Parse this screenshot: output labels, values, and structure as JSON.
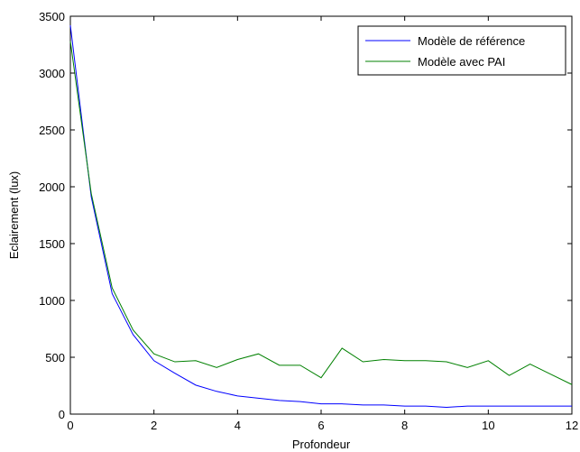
{
  "chart_data": {
    "type": "line",
    "xlabel": "Profondeur",
    "ylabel": "Eclairement (lux)",
    "xlim": [
      0,
      12
    ],
    "ylim": [
      0,
      3500
    ],
    "xticks": [
      0,
      2,
      4,
      6,
      8,
      10,
      12
    ],
    "yticks": [
      0,
      500,
      1000,
      1500,
      2000,
      2500,
      3000,
      3500
    ],
    "grid": false,
    "legend_position": "top-right",
    "series": [
      {
        "name": "Modèle de référence",
        "color": "#0000ff",
        "x": [
          0,
          0.5,
          1,
          1.5,
          2,
          2.5,
          3,
          3.5,
          4,
          4.5,
          5,
          5.5,
          6,
          6.5,
          7,
          7.5,
          8,
          8.5,
          9,
          9.5,
          10,
          10.5,
          11,
          11.5,
          12
        ],
        "values": [
          3420,
          1910,
          1060,
          700,
          470,
          360,
          255,
          200,
          160,
          140,
          120,
          110,
          90,
          90,
          80,
          80,
          70,
          70,
          60,
          70,
          70,
          70,
          70,
          70,
          70
        ]
      },
      {
        "name": "Modèle avec PAI",
        "color": "#008000",
        "x": [
          0,
          0.5,
          1,
          1.5,
          2,
          2.5,
          3,
          3.5,
          4,
          4.5,
          5,
          5.5,
          6,
          6.5,
          7,
          7.5,
          8,
          8.5,
          9,
          9.5,
          10,
          10.5,
          11,
          11.5,
          12
        ],
        "values": [
          3280,
          1940,
          1110,
          740,
          530,
          460,
          470,
          410,
          480,
          530,
          430,
          430,
          320,
          580,
          460,
          480,
          470,
          470,
          460,
          410,
          470,
          340,
          440,
          350,
          260
        ]
      }
    ]
  }
}
